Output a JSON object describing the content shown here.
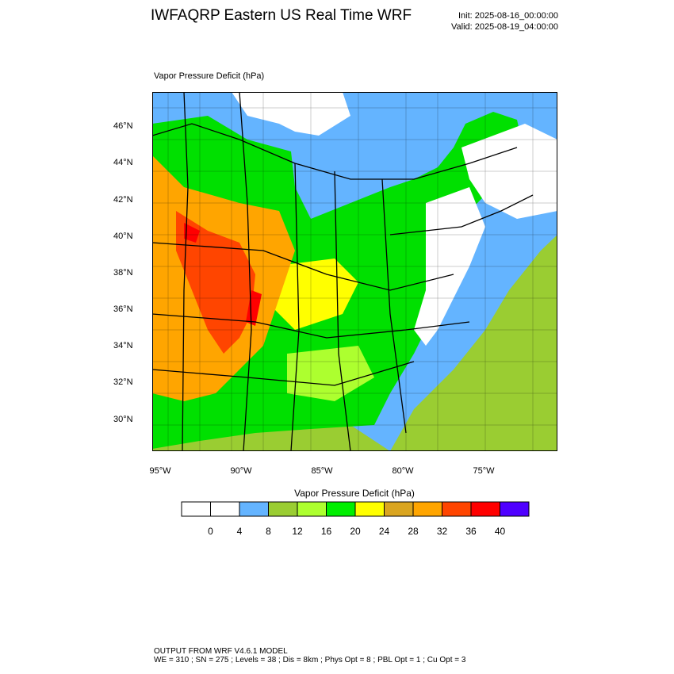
{
  "header": {
    "title": "IWFAQRP Eastern US Real Time WRF",
    "init": "Init: 2025-08-16_00:00:00",
    "valid": "Valid: 2025-08-19_04:00:00"
  },
  "map": {
    "field_label": "Vapor Pressure Deficit   (hPa)",
    "lat_labels": [
      "46°N",
      "44°N",
      "42°N",
      "40°N",
      "38°N",
      "36°N",
      "34°N",
      "32°N",
      "30°N"
    ],
    "lon_labels": [
      "95°W",
      "90°W",
      "85°W",
      "80°W",
      "75°W"
    ]
  },
  "colorbar": {
    "title": "Vapor Pressure Deficit  (hPa)",
    "colors": [
      "#ffffff",
      "#ffffff",
      "#64b4ff",
      "#9acd32",
      "#adff2f",
      "#00ee00",
      "#ffff00",
      "#daa520",
      "#ffa500",
      "#ff4500",
      "#ff0000",
      "#4f00ff"
    ],
    "labels": [
      "0",
      "4",
      "8",
      "12",
      "16",
      "20",
      "24",
      "28",
      "32",
      "36",
      "40"
    ]
  },
  "footer": {
    "line1": "OUTPUT FROM WRF V4.6.1 MODEL",
    "line2": "WE = 310 ; SN = 275 ; Levels = 38 ; Dis = 8km ; Phys Opt = 8 ; PBL Opt = 1 ; Cu Opt = 3"
  }
}
